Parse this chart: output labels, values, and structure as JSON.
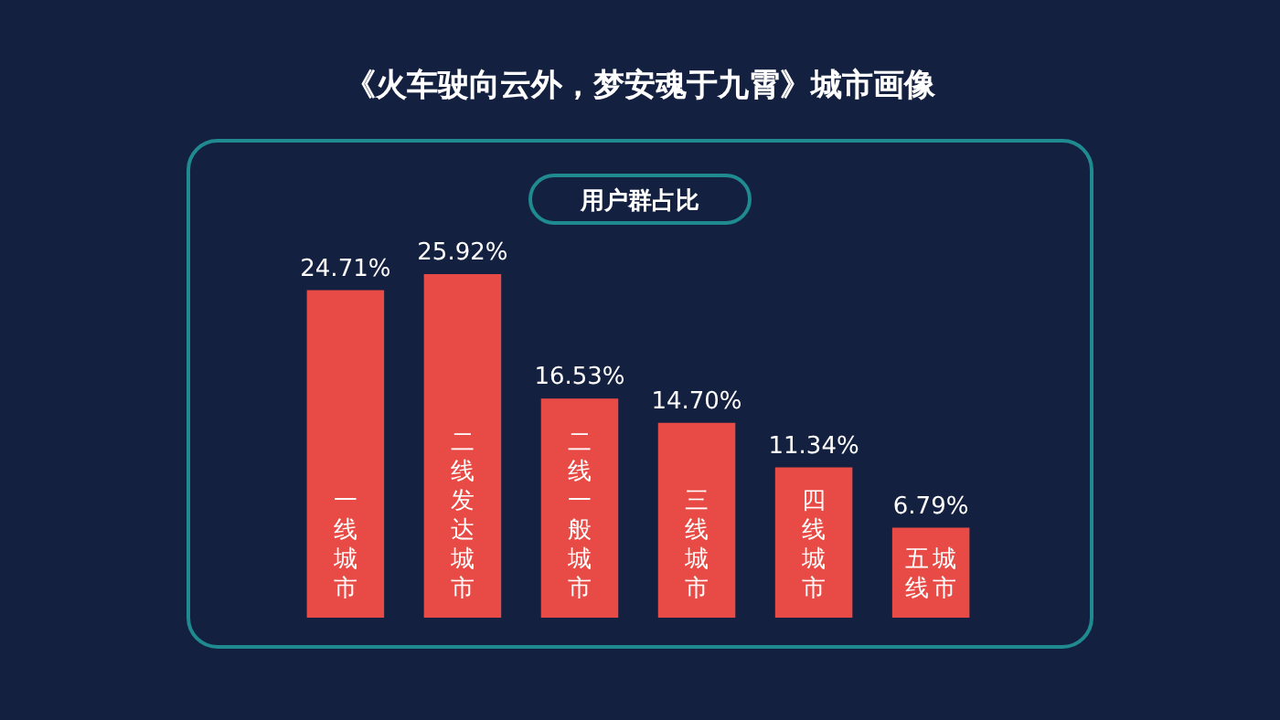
{
  "chart_data": {
    "type": "bar",
    "title": "《火车驶向云外，梦安魂于九霄》城市画像",
    "subtitle": "用户群占比",
    "categories": [
      "一线城市",
      "二线发达城市",
      "二线一般城市",
      "三线城市",
      "四线城市",
      "五线城市"
    ],
    "values": [
      24.71,
      25.92,
      16.53,
      14.7,
      11.34,
      6.79
    ],
    "value_labels": [
      "24.71%",
      "25.92%",
      "16.53%",
      "14.70%",
      "11.34%",
      "6.79%"
    ],
    "color": "#e84a45"
  }
}
